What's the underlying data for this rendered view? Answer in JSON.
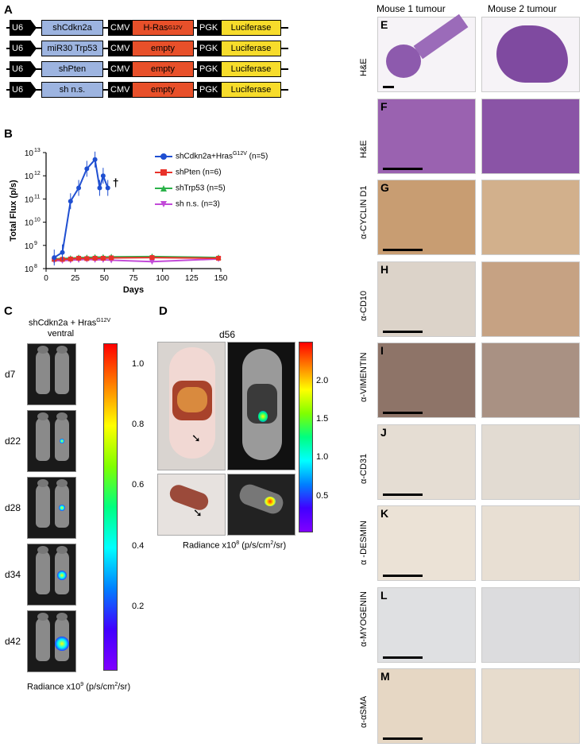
{
  "panels": {
    "A": "A",
    "B": "B",
    "C": "C",
    "D": "D",
    "E": "E",
    "F": "F",
    "G": "G",
    "H": "H",
    "I": "I",
    "J": "J",
    "K": "K",
    "L": "L",
    "M": "M"
  },
  "constructs": [
    {
      "u6": "U6",
      "shrna": "shCdkn2a",
      "cmv": "CMV",
      "gene": "H-Ras",
      "gene_sup": "G12V",
      "pgk": "PGK",
      "reporter": "Luciferase"
    },
    {
      "u6": "U6",
      "shrna": "miR30 Trp53",
      "cmv": "CMV",
      "gene": "empty",
      "gene_sup": "",
      "pgk": "PGK",
      "reporter": "Luciferase"
    },
    {
      "u6": "U6",
      "shrna": "shPten",
      "cmv": "CMV",
      "gene": "empty",
      "gene_sup": "",
      "pgk": "PGK",
      "reporter": "Luciferase"
    },
    {
      "u6": "U6",
      "shrna": "sh n.s.",
      "cmv": "CMV",
      "gene": "empty",
      "gene_sup": "",
      "pgk": "PGK",
      "reporter": "Luciferase"
    }
  ],
  "construct_colors": {
    "shrna": "#9db4e0",
    "gene": "#e8502a",
    "reporter": "#f7dc2b"
  },
  "chart_data": {
    "type": "line",
    "xlabel": "Days",
    "ylabel": "Total Flux (p/s)",
    "xlim": [
      0,
      150
    ],
    "ylim_log10": [
      8,
      13
    ],
    "x_ticks": [
      "0",
      "25",
      "50",
      "75",
      "100",
      "125",
      "150"
    ],
    "y_tick_mantissa": [
      "10",
      "10",
      "10",
      "10",
      "10",
      "10"
    ],
    "y_tick_exponents": [
      "8",
      "9",
      "10",
      "11",
      "12",
      "13"
    ],
    "y_scale": "log",
    "series": [
      {
        "name": "shCdkn2a+Hras",
        "name_sup": "G12V",
        "n": "(n=5)",
        "color": "#1f4fd1",
        "marker": "circle",
        "x": [
          7,
          14,
          21,
          28,
          35,
          42,
          46,
          49,
          53
        ],
        "y": [
          300000000.0,
          500000000.0,
          80000000000.0,
          300000000000.0,
          2000000000000.0,
          5000000000000.0,
          300000000000.0,
          1000000000000.0,
          300000000000.0
        ]
      },
      {
        "name": "shPten",
        "name_sup": "",
        "n": "(n=6)",
        "color": "#e8322a",
        "marker": "square",
        "x": [
          7,
          14,
          21,
          28,
          35,
          42,
          49,
          56,
          91,
          148
        ],
        "y": [
          250000000.0,
          250000000.0,
          260000000.0,
          280000000.0,
          270000000.0,
          280000000.0,
          280000000.0,
          290000000.0,
          300000000.0,
          280000000.0
        ]
      },
      {
        "name": "shTrp53",
        "name_sup": "",
        "n": "(n=5)",
        "color": "#2bb24a",
        "marker": "triangle",
        "x": [
          7,
          14,
          21,
          28,
          35,
          42,
          49,
          56,
          91,
          148
        ],
        "y": [
          260000000.0,
          270000000.0,
          280000000.0,
          300000000.0,
          300000000.0,
          310000000.0,
          310000000.0,
          320000000.0,
          330000000.0,
          300000000.0
        ]
      },
      {
        "name": "sh n.s.",
        "name_sup": "",
        "n": "(n=3)",
        "color": "#c24ad8",
        "marker": "triangle-down",
        "x": [
          7,
          14,
          21,
          28,
          35,
          42,
          49,
          56,
          91,
          148
        ],
        "y": [
          220000000.0,
          220000000.0,
          230000000.0,
          240000000.0,
          250000000.0,
          240000000.0,
          240000000.0,
          230000000.0,
          200000000.0,
          260000000.0
        ]
      }
    ],
    "death_marker": "†",
    "grid": false,
    "legend_position": "right"
  },
  "panel_c": {
    "title": "shCdkn2a + Hras",
    "title_sup": "G12V",
    "view": "ventral",
    "days": [
      "d7",
      "d22",
      "d28",
      "d34",
      "d42"
    ],
    "colorbar_ticks": [
      "1.0",
      "0.8",
      "0.6",
      "0.4",
      "0.2"
    ],
    "radiance_label": "Radiance x10",
    "radiance_exp": "9",
    "radiance_unit_a": " (p/s/cm",
    "radiance_unit_sup": "2",
    "radiance_unit_b": "/sr)"
  },
  "panel_d": {
    "day": "d56",
    "colorbar_ticks": [
      "2.0",
      "1.5",
      "1.0",
      "0.5"
    ],
    "radiance_label": "Radiance x10",
    "radiance_exp": "8",
    "radiance_unit_a": " (p/s/cm",
    "radiance_unit_sup": "2",
    "radiance_unit_b": "/sr)"
  },
  "histology": {
    "col_headers": [
      "Mouse 1 tumour",
      "Mouse 2 tumour"
    ],
    "rows": [
      {
        "letter": "E",
        "label": "H&E"
      },
      {
        "letter": "F",
        "label": "H&E"
      },
      {
        "letter": "G",
        "label": "α-CYCLIN D1"
      },
      {
        "letter": "H",
        "label": "α-CD10"
      },
      {
        "letter": "I",
        "label": "α-VIMENTIN"
      },
      {
        "letter": "J",
        "label": "α-CD31"
      },
      {
        "letter": "K",
        "label": "α -DESMIN"
      },
      {
        "letter": "L",
        "label": "α-MYOGENIN"
      },
      {
        "letter": "M",
        "label": "α-αSMA"
      }
    ]
  }
}
